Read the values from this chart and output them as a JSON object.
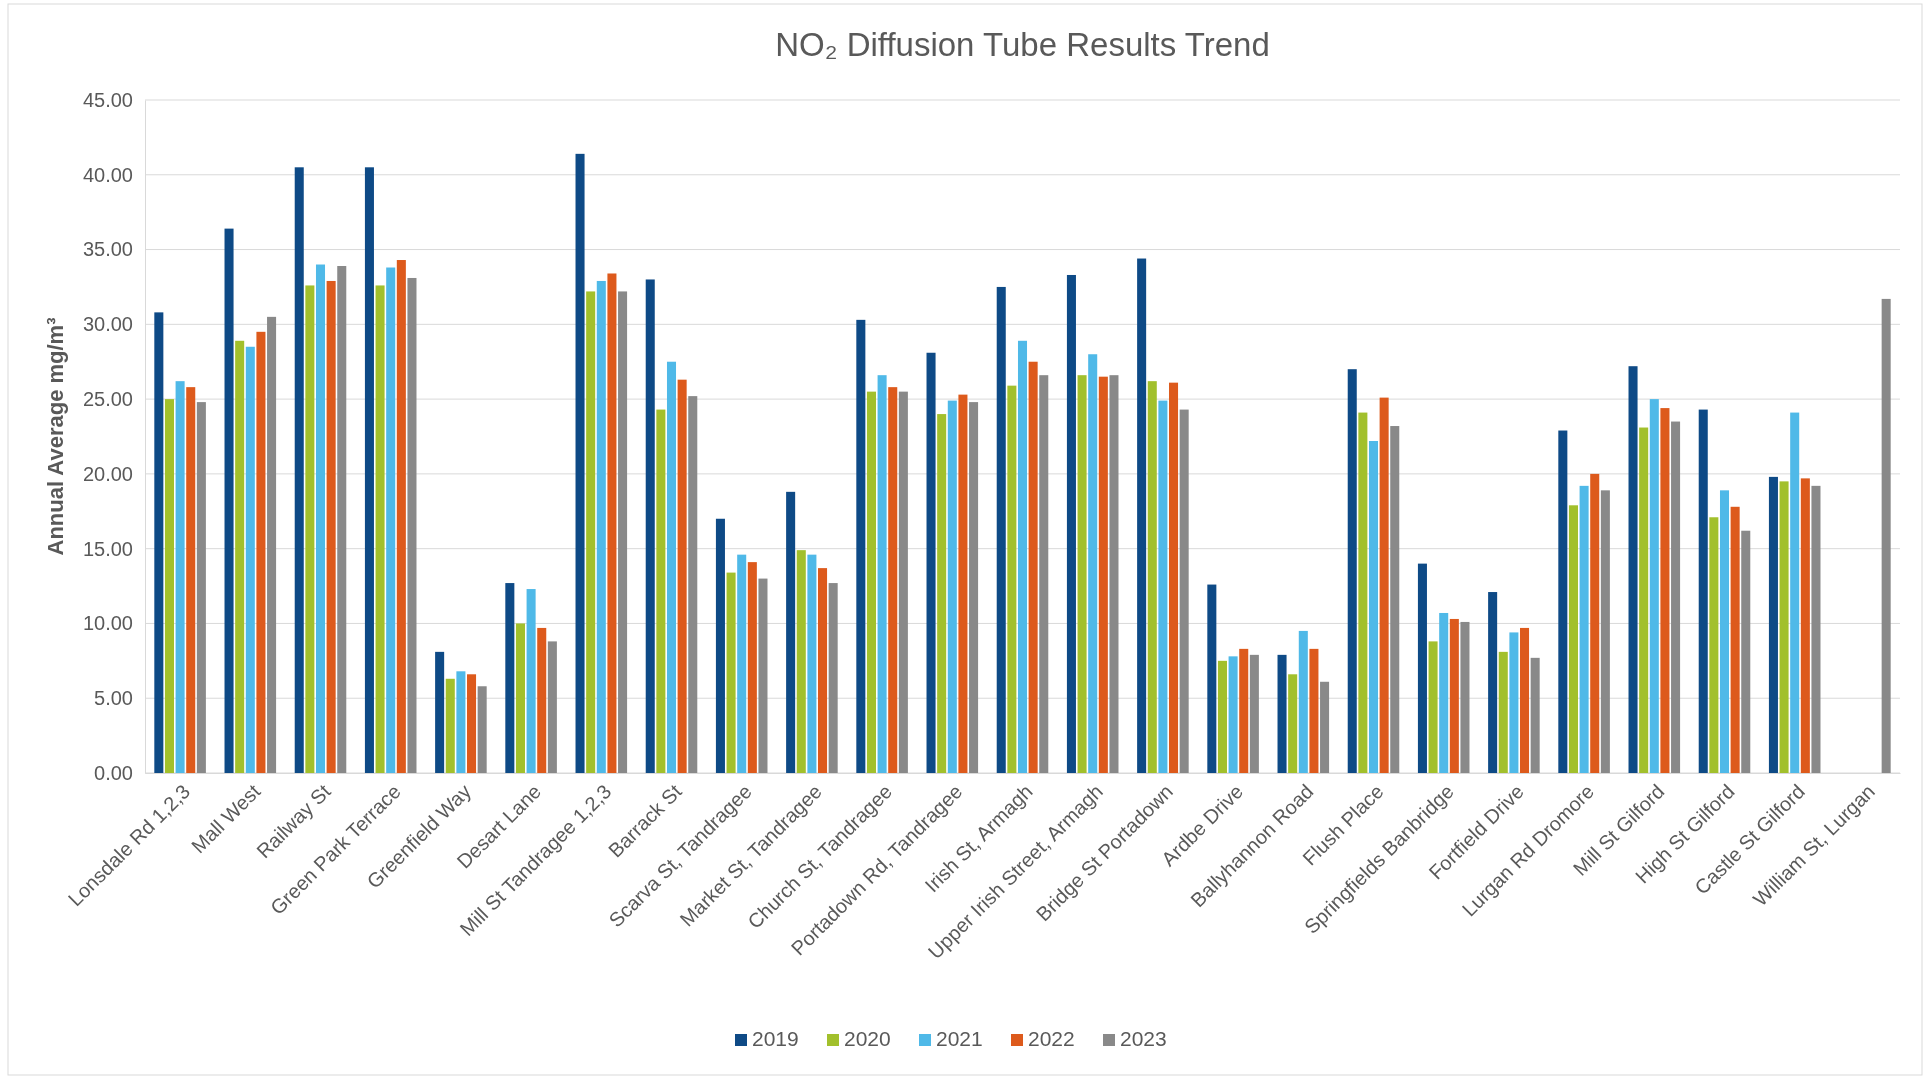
{
  "chart_data": {
    "type": "bar",
    "title": "NO₂ Diffusion Tube Results Trend",
    "ylabel": "Annual Average mg/m³",
    "categories": [
      "Lonsdale Rd 1,2,3",
      "Mall West",
      "Railway St",
      "Green Park Terrace",
      "Greenfield Way",
      "Desart Lane",
      "Mill St Tandragee 1,2,3",
      "Barrack St",
      "Scarva St, Tandragee",
      "Market St, Tandragee",
      "Church St, Tandragee",
      "Portadown Rd, Tandragee",
      "Irish St, Armagh",
      "Upper Irish Street, Armagh",
      "Bridge St Portadown",
      "Ardbe Drive",
      "Ballyhannon Road",
      "Flush Place",
      "Springfields Banbridge",
      "Fortfield Drive",
      "Lurgan Rd Dromore",
      "Mill St Gilford",
      "High St Gilford",
      "Castle St Gilford",
      "William St, Lurgan"
    ],
    "series": [
      {
        "name": "2019",
        "color": "#0e4a86",
        "values": [
          30.8,
          36.4,
          40.5,
          40.5,
          8.1,
          12.7,
          41.4,
          33.0,
          17.0,
          18.8,
          30.3,
          28.1,
          32.5,
          33.3,
          34.4,
          12.6,
          7.9,
          27.0,
          14.0,
          12.1,
          22.9,
          27.2,
          24.3,
          19.8,
          null
        ]
      },
      {
        "name": "2020",
        "color": "#a2c02c",
        "values": [
          25.0,
          28.9,
          32.6,
          32.6,
          6.3,
          10.0,
          32.2,
          24.3,
          13.4,
          14.9,
          25.5,
          24.0,
          25.9,
          26.6,
          26.2,
          7.5,
          6.6,
          24.1,
          8.8,
          8.1,
          17.9,
          23.1,
          17.1,
          19.5,
          null
        ]
      },
      {
        "name": "2021",
        "color": "#4fb9e8",
        "values": [
          26.2,
          28.5,
          34.0,
          33.8,
          6.8,
          12.3,
          32.9,
          27.5,
          14.6,
          14.6,
          26.6,
          24.9,
          28.9,
          28.0,
          24.9,
          7.8,
          9.5,
          22.2,
          10.7,
          9.4,
          19.2,
          25.0,
          18.9,
          24.1,
          null
        ]
      },
      {
        "name": "2022",
        "color": "#dd5a1c",
        "values": [
          25.8,
          29.5,
          32.9,
          34.3,
          6.6,
          9.7,
          33.4,
          26.3,
          14.1,
          13.7,
          25.8,
          25.3,
          27.5,
          26.5,
          26.1,
          8.3,
          8.3,
          25.1,
          10.3,
          9.7,
          20.0,
          24.4,
          17.8,
          19.7,
          null
        ]
      },
      {
        "name": "2023",
        "color": "#898989",
        "values": [
          24.8,
          30.5,
          33.9,
          33.1,
          5.8,
          8.8,
          32.2,
          25.2,
          13.0,
          12.7,
          25.5,
          24.8,
          26.6,
          26.6,
          24.3,
          7.9,
          6.1,
          23.2,
          10.1,
          7.7,
          18.9,
          23.5,
          16.2,
          19.2,
          31.7
        ]
      }
    ],
    "ylim": [
      0,
      45
    ],
    "yticks": [
      {
        "value": 0,
        "label": "0.00"
      },
      {
        "value": 5,
        "label": "5.00"
      },
      {
        "value": 10,
        "label": "10.00"
      },
      {
        "value": 15,
        "label": "15.00"
      },
      {
        "value": 20,
        "label": "20.00"
      },
      {
        "value": 25,
        "label": "25.00"
      },
      {
        "value": 30,
        "label": "30.00"
      },
      {
        "value": 35,
        "label": "35.00"
      },
      {
        "value": 40,
        "label": "40.00"
      },
      {
        "value": 45,
        "label": "45.00"
      }
    ],
    "grid": "y",
    "legend": "bottom"
  }
}
